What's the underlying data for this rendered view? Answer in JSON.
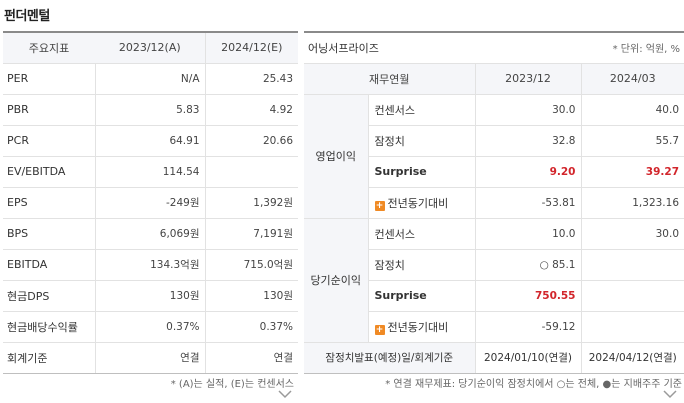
{
  "title": "펀더멘털",
  "left": {
    "headers": [
      "주요지표",
      "2023/12(A)",
      "2024/12(E)"
    ],
    "rows": [
      {
        "label": "PER",
        "v2023": "N/A",
        "v2024": "25.43"
      },
      {
        "label": "PBR",
        "v2023": "5.83",
        "v2024": "4.92"
      },
      {
        "label": "PCR",
        "v2023": "64.91",
        "v2024": "20.66"
      },
      {
        "label": "EV/EBITDA",
        "v2023": "114.54",
        "v2024": ""
      },
      {
        "label": "EPS",
        "v2023": "-249원",
        "v2024": "1,392원"
      },
      {
        "label": "BPS",
        "v2023": "6,069원",
        "v2024": "7,191원"
      },
      {
        "label": "EBITDA",
        "v2023": "134.3억원",
        "v2024": "715.0억원"
      },
      {
        "label": "현금DPS",
        "v2023": "130원",
        "v2024": "130원"
      },
      {
        "label": "현금배당수익률",
        "v2023": "0.37%",
        "v2024": "0.37%"
      },
      {
        "label": "회계기준",
        "v2023": "연결",
        "v2024": "연결"
      }
    ],
    "footnote": "* (A)는 실적, (E)는 컨센서스"
  },
  "right": {
    "company": "어닝서프라이즈",
    "unit": "* 단위: 억원, %",
    "headers": [
      "재무연월",
      "2023/12",
      "2024/03"
    ],
    "groups": [
      {
        "name": "영업이익",
        "rows": [
          {
            "label": "컨센서스",
            "m1": "30.0",
            "m2": "40.0"
          },
          {
            "label": "잠정치",
            "m1": "32.8",
            "m2": "55.7"
          },
          {
            "label": "Surprise",
            "m1": "9.20",
            "m2": "39.27"
          },
          {
            "label": "전년동기대비",
            "m1": "-53.81",
            "m2": "1,323.16"
          }
        ]
      },
      {
        "name": "당기순이익",
        "rows": [
          {
            "label": "컨센서스",
            "m1": "10.0",
            "m2": "30.0"
          },
          {
            "label": "잠정치",
            "m1": "○ 85.1",
            "m2": ""
          },
          {
            "label": "Surprise",
            "m1": "750.55",
            "m2": ""
          },
          {
            "label": "전년동기대비",
            "m1": "-59.12",
            "m2": ""
          }
        ]
      }
    ],
    "footer": {
      "label": "잠정치발표(예정)일/회계기준",
      "m1": "2024/01/10(연결)",
      "m2": "2024/04/12(연결)"
    },
    "footnote": "* 연결 재무제표: 당기순이익 잠정치에서 ○는 전체, ●는 지배주주 기준"
  },
  "colors": {
    "accent_red": "#d2252b",
    "plus_orange": "#f08a24",
    "header_bg": "#f5f6f9"
  },
  "icons": {
    "plus": "plus-icon",
    "chevron": "chevron-down-icon"
  }
}
